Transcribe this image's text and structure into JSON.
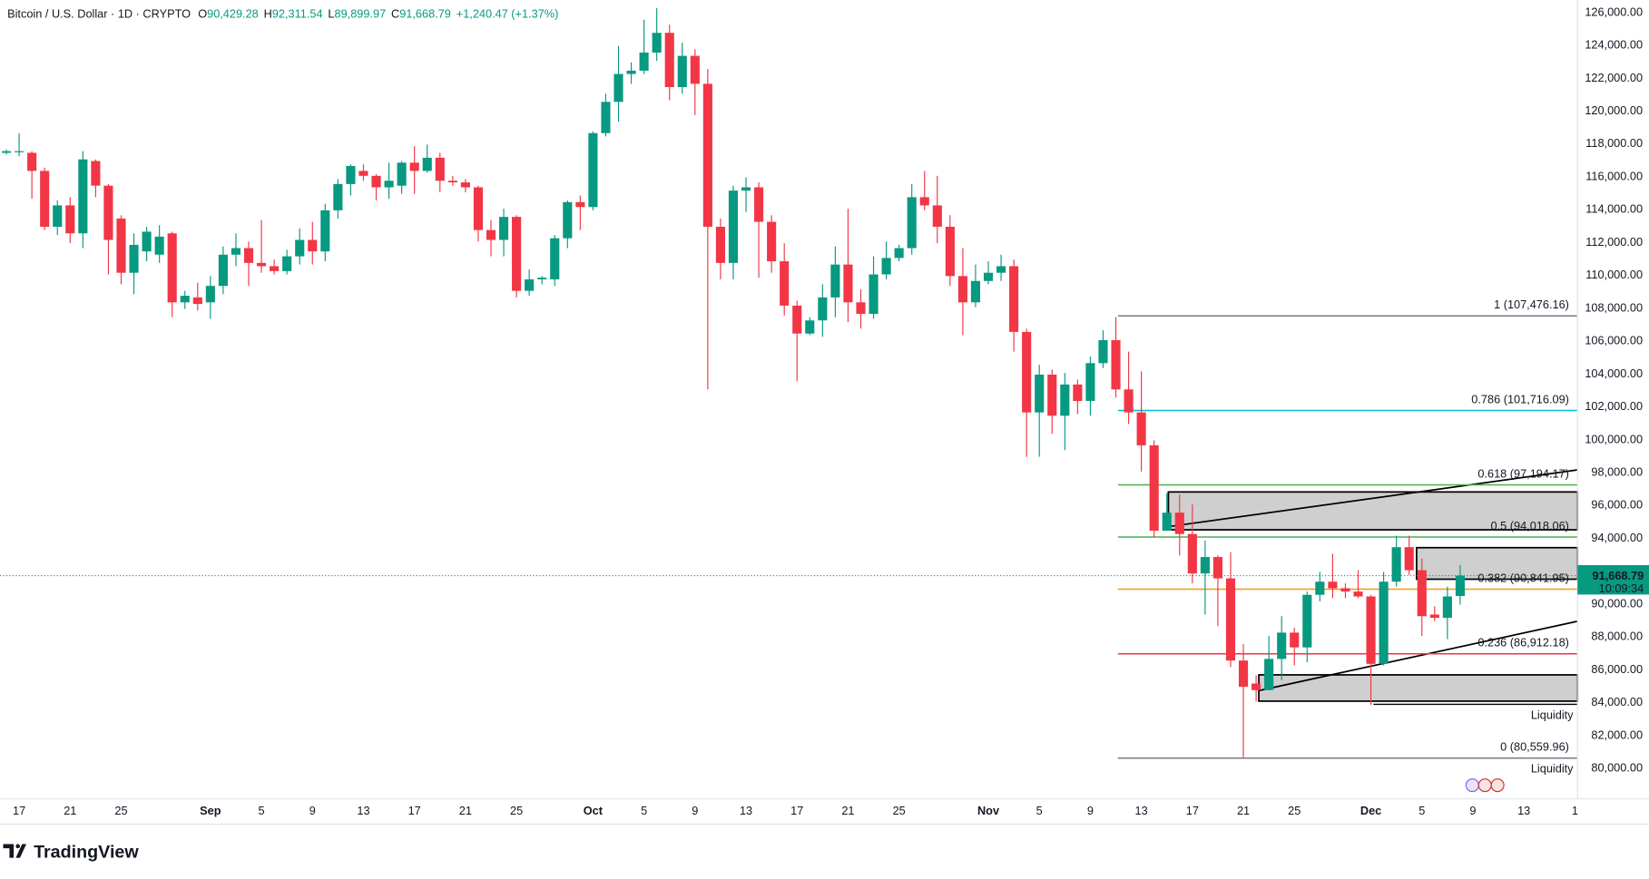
{
  "header": {
    "symbol": "Bitcoin / U.S. Dollar · 1D · CRYPTO",
    "ohlc": [
      {
        "label": "O",
        "value": "90,429.28"
      },
      {
        "label": "H",
        "value": "92,311.54"
      },
      {
        "label": "L",
        "value": "89,899.97"
      },
      {
        "label": "C",
        "value": "91,668.79"
      }
    ],
    "change": "+1,240.47 (+1.37%)"
  },
  "branding": "TradingView",
  "chart_data": {
    "type": "candlestick",
    "up_color": "#089981",
    "down_color": "#f23645",
    "open": [
      117400,
      117500,
      117400,
      116300,
      112900,
      114200,
      112500,
      116900,
      115400,
      113400,
      110100,
      111400,
      111200,
      112500,
      108300,
      108600,
      108300,
      109300,
      111200,
      111600,
      110700,
      110500,
      110200,
      111100,
      112100,
      111400,
      113900,
      115500,
      116300,
      116000,
      115300,
      115400,
      116800,
      116300,
      117100,
      115700,
      115600,
      115300,
      112700,
      112100,
      113500,
      109000,
      109700,
      109700,
      112200,
      114400,
      114100,
      118600,
      120500,
      122200,
      122400,
      123500,
      124700,
      121400,
      123300,
      121600,
      112900,
      110700,
      115100,
      115300,
      113200,
      110800,
      108100,
      106400,
      107200,
      108600,
      110600,
      108300,
      107600,
      110000,
      111000,
      111600,
      114700,
      114200,
      112900,
      109900,
      108300,
      109600,
      110100,
      110500,
      106500,
      101600,
      103900,
      101400,
      103300,
      102300,
      104600,
      106000,
      103000,
      101600,
      99600,
      94400,
      95500,
      94200,
      91800,
      92800,
      91500,
      86500,
      85100,
      84700,
      86600,
      88200,
      87300,
      90500,
      91300,
      90900,
      90700,
      90400,
      86300,
      91300,
      93400,
      92000,
      89300,
      89100,
      90429.28
    ],
    "high": [
      117600,
      118600,
      117500,
      116500,
      114500,
      114700,
      117500,
      117000,
      115500,
      113600,
      112500,
      112900,
      113000,
      112600,
      109000,
      109500,
      109900,
      111700,
      112500,
      112000,
      113300,
      110900,
      111500,
      112800,
      113200,
      114300,
      115800,
      116700,
      116700,
      116100,
      116800,
      116900,
      117800,
      117900,
      117400,
      116000,
      115800,
      115400,
      113300,
      114000,
      113600,
      110300,
      109900,
      112400,
      114500,
      114800,
      118700,
      121000,
      123900,
      122900,
      125500,
      126200,
      125200,
      124100,
      123700,
      122500,
      113400,
      115400,
      115900,
      115600,
      113600,
      111900,
      108400,
      107400,
      109400,
      111700,
      114000,
      109100,
      111100,
      112000,
      111800,
      115500,
      116300,
      116000,
      113600,
      111600,
      110600,
      110800,
      111200,
      110900,
      106700,
      104500,
      104200,
      104000,
      103600,
      105000,
      106600,
      107400,
      105300,
      104100,
      99900,
      96700,
      96600,
      96000,
      93800,
      92900,
      93100,
      87500,
      85600,
      88000,
      89200,
      88500,
      90700,
      91900,
      93000,
      91200,
      92000,
      90500,
      91900,
      94100,
      94100,
      92700,
      89800,
      91000,
      92311.54
    ],
    "low": [
      117300,
      117200,
      114600,
      112700,
      112400,
      111900,
      111600,
      114700,
      110000,
      109400,
      108800,
      110800,
      110700,
      107400,
      107900,
      107800,
      107300,
      108800,
      110500,
      109300,
      110100,
      110000,
      110000,
      110600,
      110600,
      110800,
      113400,
      114800,
      115700,
      114500,
      114600,
      114900,
      114900,
      116200,
      115000,
      115400,
      115000,
      112000,
      111100,
      111100,
      108600,
      108700,
      109400,
      109300,
      111600,
      112700,
      113900,
      118400,
      119300,
      121600,
      122200,
      123000,
      120600,
      121000,
      119700,
      103000,
      109700,
      109700,
      113800,
      109800,
      110100,
      107500,
      103500,
      106300,
      106200,
      107400,
      107100,
      106700,
      107300,
      109700,
      110800,
      111200,
      113900,
      111900,
      109300,
      106300,
      108000,
      109400,
      109600,
      105300,
      98900,
      98900,
      100300,
      99300,
      101500,
      101400,
      104300,
      102500,
      100900,
      98000,
      94000,
      94400,
      92900,
      91200,
      89300,
      88600,
      86100,
      80600,
      84000,
      84700,
      85300,
      86200,
      86400,
      90100,
      90300,
      90300,
      90300,
      83800,
      86200,
      91000,
      91700,
      88000,
      88900,
      87800,
      89899.97
    ],
    "close": [
      117500,
      117500,
      116300,
      112900,
      114200,
      112500,
      117000,
      115400,
      112100,
      110100,
      111800,
      112600,
      112300,
      108300,
      108700,
      108200,
      109300,
      111200,
      111600,
      110700,
      110500,
      110200,
      111100,
      112100,
      111400,
      113900,
      115500,
      116600,
      116000,
      115300,
      115700,
      116800,
      116300,
      117100,
      115700,
      115600,
      115300,
      112700,
      112100,
      113500,
      109000,
      109700,
      109800,
      112200,
      114400,
      114100,
      118600,
      120500,
      122200,
      122400,
      123500,
      124700,
      121400,
      123300,
      121600,
      112900,
      110700,
      115100,
      115300,
      113200,
      110800,
      108100,
      106400,
      107200,
      108600,
      110600,
      108300,
      107600,
      110000,
      111000,
      111600,
      114700,
      114200,
      112900,
      109900,
      108300,
      109600,
      110100,
      110500,
      106500,
      101600,
      103900,
      101400,
      103300,
      102300,
      104600,
      106000,
      103000,
      101600,
      99600,
      94400,
      95500,
      94200,
      91800,
      92800,
      91500,
      86500,
      84900,
      84700,
      86600,
      88200,
      87300,
      90500,
      91300,
      90900,
      90700,
      90400,
      86300,
      91300,
      93400,
      92000,
      89200,
      89100,
      90400,
      91668.79
    ],
    "xlim": [
      -0.5,
      123.2
    ],
    "xticks": [
      {
        "value": 1,
        "label": "17"
      },
      {
        "value": 5,
        "label": "21"
      },
      {
        "value": 9,
        "label": "25"
      },
      {
        "value": 16,
        "label": "Sep"
      },
      {
        "value": 20,
        "label": "5"
      },
      {
        "value": 24,
        "label": "9"
      },
      {
        "value": 28,
        "label": "13"
      },
      {
        "value": 32,
        "label": "17"
      },
      {
        "value": 36,
        "label": "21"
      },
      {
        "value": 40,
        "label": "25"
      },
      {
        "value": 46,
        "label": "Oct"
      },
      {
        "value": 50,
        "label": "5"
      },
      {
        "value": 54,
        "label": "9"
      },
      {
        "value": 58,
        "label": "13"
      },
      {
        "value": 62,
        "label": "17"
      },
      {
        "value": 66,
        "label": "21"
      },
      {
        "value": 70,
        "label": "25"
      },
      {
        "value": 77,
        "label": "Nov"
      },
      {
        "value": 81,
        "label": "5"
      },
      {
        "value": 85,
        "label": "9"
      },
      {
        "value": 89,
        "label": "13"
      },
      {
        "value": 93,
        "label": "17"
      },
      {
        "value": 97,
        "label": "21"
      },
      {
        "value": 101,
        "label": "25"
      },
      {
        "value": 107,
        "label": "Dec"
      },
      {
        "value": 111,
        "label": "5"
      },
      {
        "value": 115,
        "label": "9"
      },
      {
        "value": 119,
        "label": "13"
      },
      {
        "value": 123,
        "label": "1"
      }
    ],
    "ylim": [
      78080,
      126700
    ],
    "yticks": [
      {
        "value": 80000,
        "label": "80,000.00"
      },
      {
        "value": 82000,
        "label": "82,000.00"
      },
      {
        "value": 84000,
        "label": "84,000.00"
      },
      {
        "value": 86000,
        "label": "86,000.00"
      },
      {
        "value": 88000,
        "label": "88,000.00"
      },
      {
        "value": 90000,
        "label": "90,000.00"
      },
      {
        "value": 92000,
        "label": "92,000.00"
      },
      {
        "value": 94000,
        "label": "94,000.00"
      },
      {
        "value": 96000,
        "label": "96,000.00"
      },
      {
        "value": 98000,
        "label": "98,000.00"
      },
      {
        "value": 100000,
        "label": "100,000.00"
      },
      {
        "value": 102000,
        "label": "102,000.00"
      },
      {
        "value": 104000,
        "label": "104,000.00"
      },
      {
        "value": 106000,
        "label": "106,000.00"
      },
      {
        "value": 108000,
        "label": "108,000.00"
      },
      {
        "value": 110000,
        "label": "110,000.00"
      },
      {
        "value": 112000,
        "label": "112,000.00"
      },
      {
        "value": 114000,
        "label": "114,000.00"
      },
      {
        "value": 116000,
        "label": "116,000.00"
      },
      {
        "value": 118000,
        "label": "118,000.00"
      },
      {
        "value": 120000,
        "label": "120,000.00"
      },
      {
        "value": 122000,
        "label": "122,000.00"
      },
      {
        "value": 124000,
        "label": "124,000.00"
      },
      {
        "value": 126000,
        "label": "126,000.00"
      }
    ],
    "fib_levels": [
      {
        "value": 107476.16,
        "label": "1 (107,476.16)",
        "color": "#787b86"
      },
      {
        "value": 101716.09,
        "label": "0.786 (101,716.09)",
        "color": "#00bcd4"
      },
      {
        "value": 97194.17,
        "label": "0.618 (97,194.17)",
        "color": "#4caf50"
      },
      {
        "value": 94018.06,
        "label": "0.5 (94,018.06)",
        "color": "#4caf50"
      },
      {
        "value": 90841.95,
        "label": "0.382 (90,841.95)",
        "color": "#ff9800"
      },
      {
        "value": 86912.18,
        "label": "0.236 (86,912.18)",
        "color": "#f23645"
      },
      {
        "value": 80559.96,
        "label": "0 (80,559.96)",
        "color": "#787b86"
      }
    ],
    "last_price": {
      "value": 91668.79,
      "label": "91,668.79",
      "countdown": "10:09:34"
    },
    "annotations": [
      "Liquidity",
      "Liquidity"
    ]
  }
}
